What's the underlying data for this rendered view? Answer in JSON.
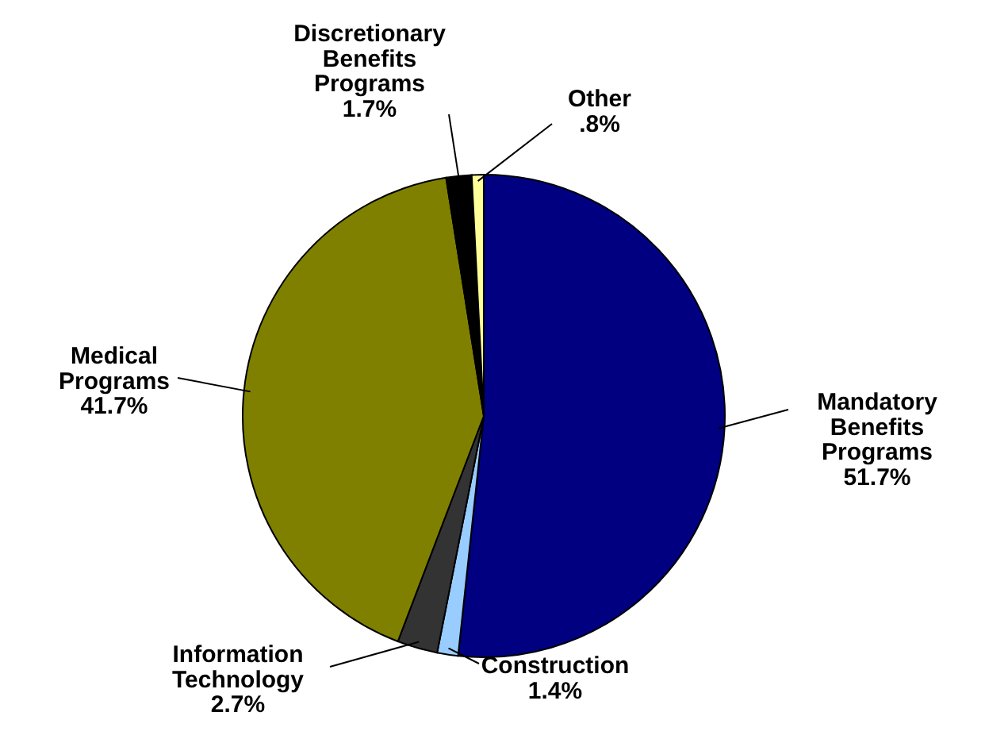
{
  "chart_data": {
    "type": "pie",
    "categories": [
      "Mandatory Benefits Programs",
      "Construction",
      "Information Technology",
      "Medical Programs",
      "Discretionary Benefits Programs",
      "Other"
    ],
    "values": [
      51.7,
      1.4,
      2.7,
      41.7,
      1.7,
      0.8
    ],
    "value_labels": [
      "51.7%",
      "1.4%",
      "2.7%",
      "41.7%",
      "1.7%",
      ".8%"
    ],
    "colors": [
      "#000080",
      "#99ccff",
      "#333333",
      "#808000",
      "#000000",
      "#ffff99"
    ]
  }
}
